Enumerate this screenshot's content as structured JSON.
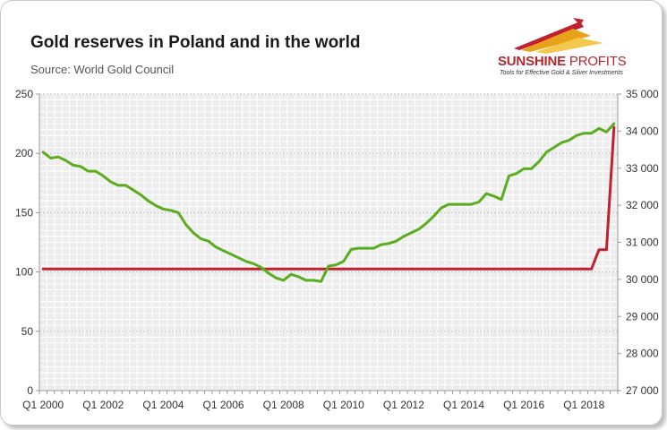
{
  "header": {
    "title": "Gold reserves in Poland and in the world",
    "source": "Source: World Gold Council"
  },
  "logo": {
    "name_bold": "SUNSHINE",
    "name_light": " PROFITS",
    "tagline": "Tools for Effective Gold & Silver Investments"
  },
  "colors": {
    "poland": "#c0202f",
    "world": "#5aad1e",
    "grid": "#c0c0c0",
    "axis": "#9a9a9a",
    "plot_bg": "#ededed"
  },
  "chart_data": {
    "type": "line",
    "title": "Gold reserves in Poland and in the world",
    "x_start": "Q1 2000",
    "quarters": 77,
    "x_ticks": [
      {
        "label": "Q1 2000",
        "index": 0
      },
      {
        "label": "Q1 2002",
        "index": 8
      },
      {
        "label": "Q1 2004",
        "index": 16
      },
      {
        "label": "Q1 2006",
        "index": 24
      },
      {
        "label": "Q1 2008",
        "index": 32
      },
      {
        "label": "Q1 2010",
        "index": 40
      },
      {
        "label": "Q1 2012",
        "index": 48
      },
      {
        "label": "Q1 2014",
        "index": 56
      },
      {
        "label": "Q1 2016",
        "index": 64
      },
      {
        "label": "Q1 2018",
        "index": 72
      }
    ],
    "y_left": {
      "min": 0,
      "max": 250,
      "ticks": [
        0,
        50,
        100,
        150,
        200,
        250
      ],
      "tick_labels": [
        "0",
        "50",
        "100",
        "150",
        "200",
        "250"
      ]
    },
    "y_right": {
      "min": 27000,
      "max": 35000,
      "ticks": [
        27000,
        28000,
        29000,
        30000,
        31000,
        32000,
        33000,
        34000,
        35000
      ],
      "tick_labels": [
        "27 000",
        "28 000",
        "29 000",
        "30 000",
        "31 000",
        "32 000",
        "33 000",
        "34 000",
        "35 000"
      ]
    },
    "series": [
      {
        "name": "World",
        "axis": "left",
        "values": [
          201,
          196,
          197,
          194,
          190,
          189,
          185,
          185,
          181,
          176,
          173,
          173,
          169,
          165,
          160,
          156,
          153,
          152,
          150,
          140,
          133,
          128,
          126,
          121,
          118,
          115,
          112,
          109,
          107,
          104,
          99,
          95,
          93,
          98,
          96,
          93,
          93,
          92,
          105,
          106,
          109,
          119,
          120,
          120,
          120,
          123,
          124,
          126,
          130,
          133,
          136,
          141,
          147,
          154,
          157,
          157,
          157,
          157,
          159,
          166,
          164,
          161,
          181,
          183,
          187,
          187,
          193,
          201,
          205,
          209,
          211,
          215,
          217,
          217,
          221,
          218,
          225
        ]
      },
      {
        "name": "Poland",
        "axis": "right",
        "values": [
          30280,
          30280,
          30280,
          30280,
          30280,
          30280,
          30280,
          30280,
          30280,
          30280,
          30280,
          30280,
          30280,
          30280,
          30280,
          30280,
          30280,
          30280,
          30280,
          30280,
          30280,
          30280,
          30280,
          30280,
          30280,
          30280,
          30280,
          30280,
          30280,
          30280,
          30280,
          30280,
          30280,
          30280,
          30280,
          30280,
          30280,
          30280,
          30280,
          30280,
          30280,
          30280,
          30280,
          30280,
          30280,
          30280,
          30280,
          30280,
          30280,
          30280,
          30280,
          30280,
          30280,
          30280,
          30280,
          30280,
          30280,
          30280,
          30280,
          30280,
          30280,
          30280,
          30280,
          30280,
          30280,
          30280,
          30280,
          30280,
          30280,
          30280,
          30280,
          30280,
          30280,
          30280,
          30800,
          30800,
          34100
        ]
      }
    ]
  }
}
